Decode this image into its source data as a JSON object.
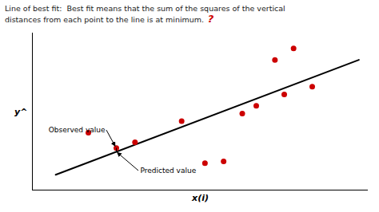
{
  "chart_data": {
    "type": "scatter",
    "title": "Line of best fit:  Best fit means that the sum of the squares of the vertical",
    "subtitle": "distances from each point to the line is at minimum.",
    "xlabel": "x(i)",
    "ylabel": "y^",
    "xlim": [
      1.0,
      8.2
    ],
    "ylim": [
      2.1,
      6.2
    ],
    "tick_labels": false,
    "grid": false,
    "series": [
      {
        "type": "scatter",
        "color": "#cc0000",
        "x": [
          2.2,
          2.8,
          3.2,
          4.2,
          4.7,
          5.1,
          5.5,
          5.8,
          6.2,
          6.4,
          6.6,
          7.0
        ],
        "values": [
          3.6,
          3.2,
          3.35,
          3.9,
          2.8,
          2.85,
          4.1,
          4.3,
          5.5,
          4.6,
          5.8,
          4.8
        ]
      },
      {
        "type": "line",
        "color": "#000000",
        "x": [
          1.5,
          8.0
        ],
        "values": [
          2.5,
          5.5
        ]
      }
    ],
    "annotations": [
      {
        "text": "?",
        "color": "#cc0000"
      },
      {
        "text": "Observed value",
        "x": 2.8,
        "y": 3.2
      },
      {
        "text": "Predicted value",
        "x": 2.8,
        "y": 3.1
      }
    ]
  }
}
